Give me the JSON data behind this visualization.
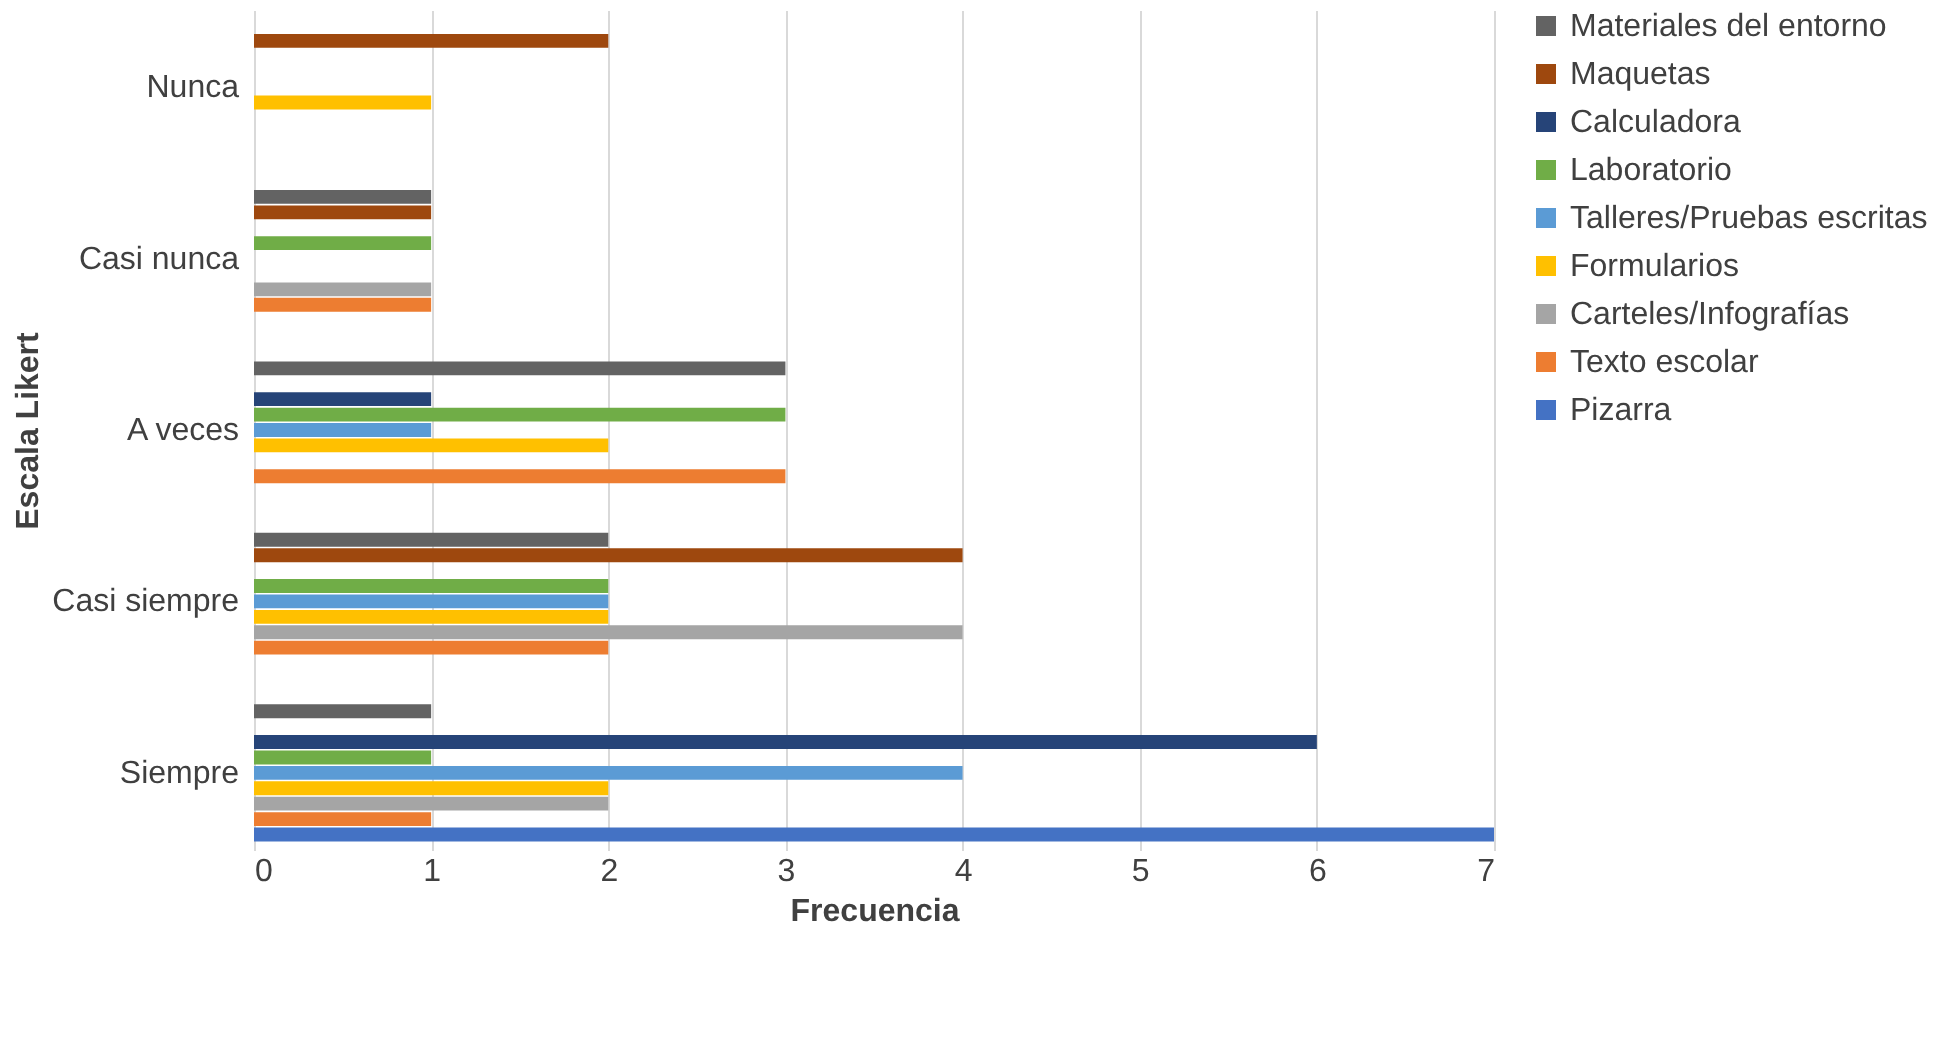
{
  "chart_data": {
    "type": "bar",
    "orientation": "horizontal",
    "xlabel": "Frecuencia",
    "ylabel": "Escala Likert",
    "categories": [
      "Nunca",
      "Casi nunca",
      "A veces",
      "Casi siempre",
      "Siempre"
    ],
    "series": [
      {
        "name": "Pizarra",
        "color": "#4472c4",
        "values": [
          0,
          0,
          0,
          0,
          7
        ]
      },
      {
        "name": "Texto escolar",
        "color": "#ed7d31",
        "values": [
          0,
          1,
          3,
          2,
          1
        ]
      },
      {
        "name": "Carteles/Infografías",
        "color": "#a5a5a5",
        "values": [
          0,
          1,
          0,
          4,
          2
        ]
      },
      {
        "name": "Formularios",
        "color": "#ffc000",
        "values": [
          1,
          0,
          2,
          2,
          2
        ]
      },
      {
        "name": "Talleres/Pruebas escritas",
        "color": "#5b9bd5",
        "values": [
          0,
          0,
          1,
          2,
          4
        ]
      },
      {
        "name": "Laboratorio",
        "color": "#70ad47",
        "values": [
          0,
          1,
          3,
          2,
          1
        ]
      },
      {
        "name": "Calculadora",
        "color": "#264478",
        "values": [
          0,
          0,
          1,
          0,
          6
        ]
      },
      {
        "name": "Maquetas",
        "color": "#9e480e",
        "values": [
          2,
          1,
          0,
          4,
          0
        ]
      },
      {
        "name": "Materiales del entorno",
        "color": "#636363",
        "values": [
          0,
          1,
          3,
          2,
          1
        ]
      }
    ],
    "xlim": [
      0,
      7
    ],
    "xticks": [
      0,
      1,
      2,
      3,
      4,
      5,
      6,
      7
    ],
    "grid": "x",
    "legend": "right"
  }
}
